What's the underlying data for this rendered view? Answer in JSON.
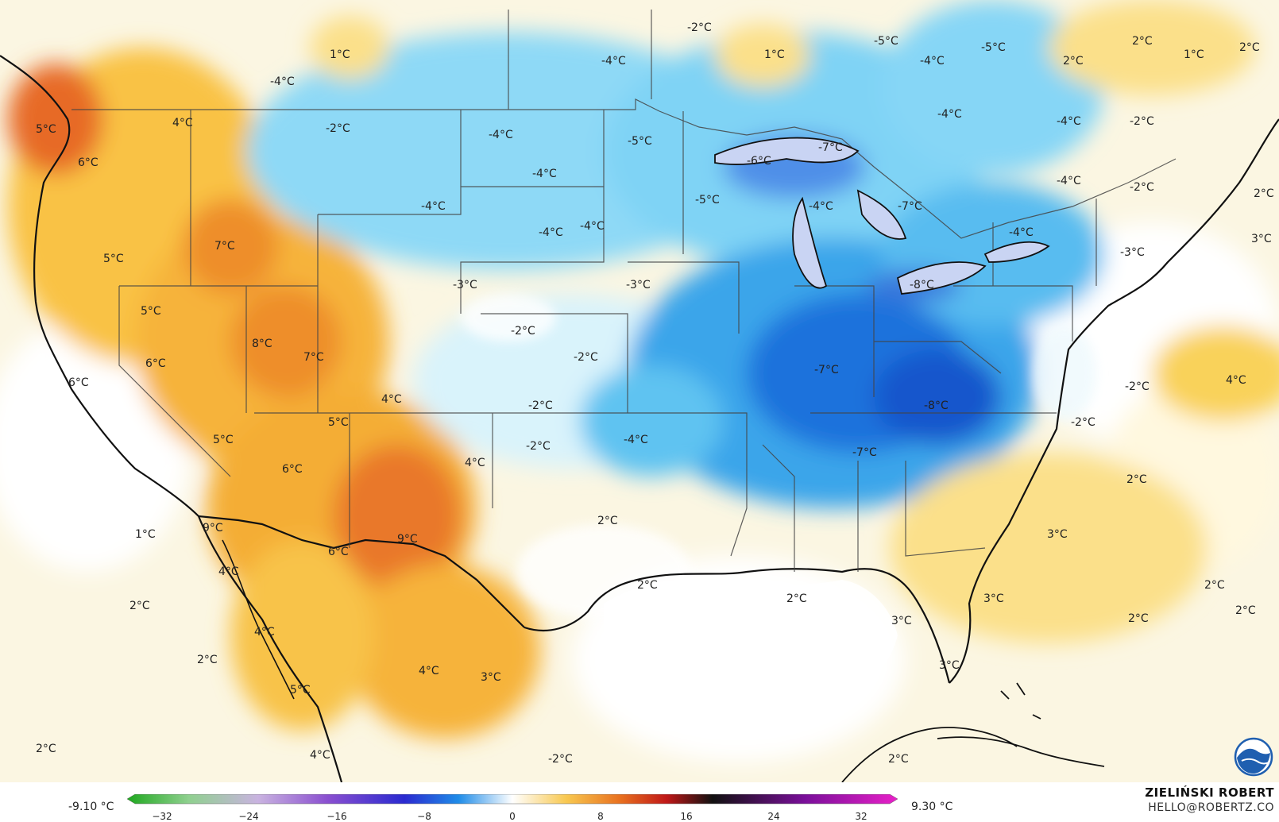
{
  "map": {
    "colors": {
      "land_warm": "#fde79a",
      "land_warmer": "#f9bd3c",
      "land_hot": "#ef8a2a",
      "land_hottest": "#e35c20",
      "cool": "#bfe9f8",
      "cold": "#6ecff5",
      "colder": "#2e9ee8",
      "coldest": "#1466d8",
      "neutral": "#ffffff",
      "border": "#1a1a1a"
    },
    "labels": [
      "1°C",
      "-4°C",
      "-2°C",
      "-4°C",
      "-5°C",
      "-4°C",
      "1°C",
      "-5°C",
      "-5°C",
      "2°C",
      "2°C",
      "1°C",
      "2°C",
      "5°C",
      "4°C",
      "6°C",
      "-2°C",
      "-4°C",
      "-5°C",
      "-7°C",
      "-4°C",
      "-4°C",
      "-2°C",
      "-6°C",
      "-4°C",
      "-5°C",
      "-4°C",
      "-7°C",
      "-4°C",
      "-2°C",
      "2°C",
      "7°C",
      "-4°C",
      "-4°C",
      "-4°C",
      "-4°C",
      "5°C",
      "-3°C",
      "-3°C",
      "-8°C",
      "-3°C",
      "3°C",
      "5°C",
      "-2°C",
      "8°C",
      "7°C",
      "6°C",
      "-2°C",
      "-7°C",
      "6°C",
      "4°C",
      "-2°C",
      "-8°C",
      "-2°C",
      "4°C",
      "5°C",
      "5°C",
      "-4°C",
      "-2°C",
      "-2°C",
      "6°C",
      "4°C",
      "-7°C",
      "2°C",
      "1°C",
      "9°C",
      "2°C",
      "3°C",
      "6°C",
      "9°C",
      "4°C",
      "2°C",
      "2°C",
      "2°C",
      "3°C",
      "2°C",
      "2°C",
      "4°C",
      "3°C",
      "2°C",
      "2°C",
      "3°C",
      "4°C",
      "3°C",
      "5°C",
      "2°C",
      "4°C",
      "-2°C",
      "2°C"
    ]
  },
  "legend": {
    "min_label": "-9.10 °C",
    "max_label": "9.30 °C",
    "ticks": [
      "−32",
      "−24",
      "−16",
      "−8",
      "0",
      "8",
      "16",
      "24",
      "32"
    ],
    "gradient_stops": [
      "#1fa81f",
      "#8fd08f",
      "#c9b3e0",
      "#8a4fd0",
      "#2a2ad0",
      "#1f8ce8",
      "#ffffff",
      "#f8c850",
      "#e8701f",
      "#c01818",
      "#111111",
      "#7a0f9a",
      "#e820c8"
    ]
  },
  "credit": {
    "name": "ZIELIŃSKI ROBERT",
    "email": "HELLO@ROBERTZ.CO"
  },
  "logo": {
    "icon": "noaa-logo-icon",
    "color": "#1f5fb0"
  }
}
